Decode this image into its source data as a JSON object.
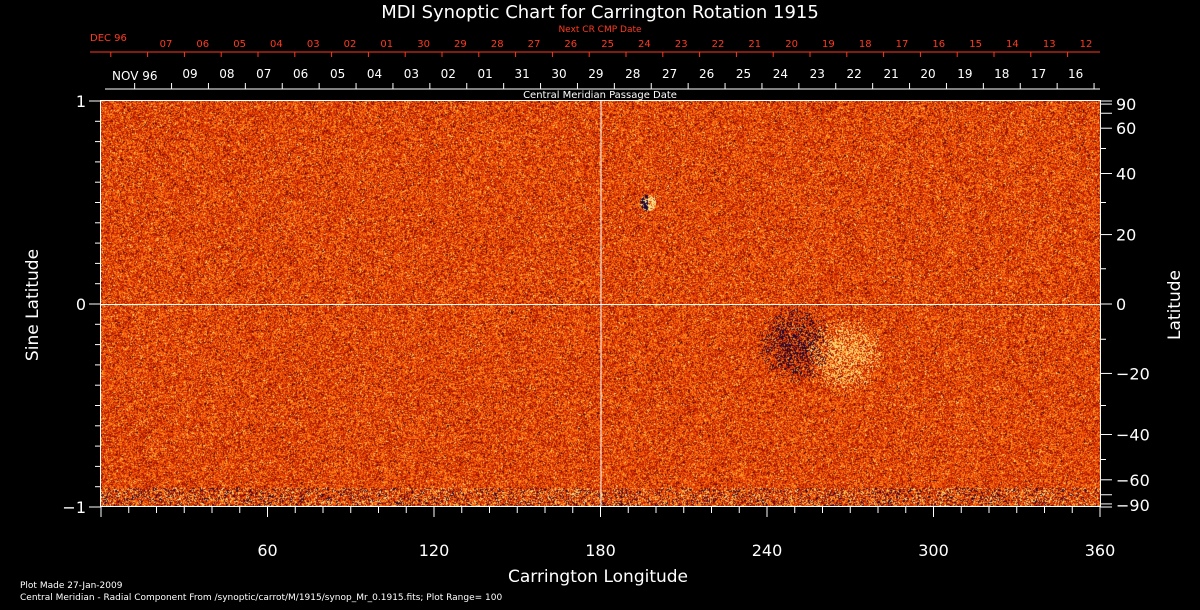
{
  "chart_data": {
    "type": "heatmap",
    "title": "MDI Synoptic Chart for Carrington Rotation 1915",
    "xlabel": "Carrington Longitude",
    "ylabel_left": "Sine Latitude",
    "ylabel_right": "Latitude",
    "xlim": [
      0,
      360
    ],
    "ylim_sine": [
      -1,
      1
    ],
    "x_ticks": [
      60,
      120,
      180,
      240,
      300,
      360
    ],
    "y_ticks_left": [
      {
        "value": 1,
        "label": "1"
      },
      {
        "value": 0,
        "label": "0"
      },
      {
        "value": -1,
        "label": "−1"
      }
    ],
    "y_ticks_right": [
      {
        "value": 90,
        "label": "90"
      },
      {
        "value": 60,
        "label": "60"
      },
      {
        "value": 40,
        "label": "40"
      },
      {
        "value": 20,
        "label": "20"
      },
      {
        "value": 0,
        "label": "0"
      },
      {
        "value": -20,
        "label": "−20"
      },
      {
        "value": -40,
        "label": "−40"
      },
      {
        "value": -60,
        "label": "−60"
      },
      {
        "value": -90,
        "label": "−90"
      }
    ],
    "grid": {
      "longitude": [
        180
      ],
      "sine_latitude": [
        0
      ]
    },
    "colorscale": [
      "#0a0a50",
      "#3a0000",
      "#a01000",
      "#e03a00",
      "#ff6a10",
      "#ffb030",
      "#fff0a0"
    ],
    "plot_range": 100,
    "features": [
      {
        "name": "negative-polarity-region",
        "longitude": 250,
        "sine_latitude": -0.2
      },
      {
        "name": "positive-polarity-region",
        "longitude": 268,
        "sine_latitude": -0.25
      },
      {
        "name": "small-bipole",
        "longitude": 197,
        "sine_latitude": 0.5
      }
    ],
    "cmp_dates": {
      "caption": "Central Meridian Passage Date",
      "month_label": "NOV 96",
      "labels": [
        "09",
        "08",
        "07",
        "06",
        "05",
        "04",
        "03",
        "02",
        "01",
        "31",
        "30",
        "29",
        "28",
        "27",
        "26",
        "25",
        "24",
        "23",
        "22",
        "21",
        "20",
        "19",
        "18",
        "17",
        "16"
      ]
    },
    "next_cr_dates": {
      "caption": "Next CR CMP Date",
      "month_label": "DEC 96",
      "labels": [
        "07",
        "06",
        "05",
        "04",
        "03",
        "02",
        "01",
        "30",
        "29",
        "28",
        "27",
        "26",
        "25",
        "24",
        "23",
        "22",
        "21",
        "20",
        "19",
        "18",
        "17",
        "16",
        "15",
        "14",
        "13",
        "12"
      ]
    }
  },
  "footer": {
    "plot_made": "Plot Made 27-Jan-2009",
    "source": "Central Meridian - Radial Component From /synoptic/carrot/M/1915/synop_Mr_0.1915.fits; Plot Range=  100"
  }
}
